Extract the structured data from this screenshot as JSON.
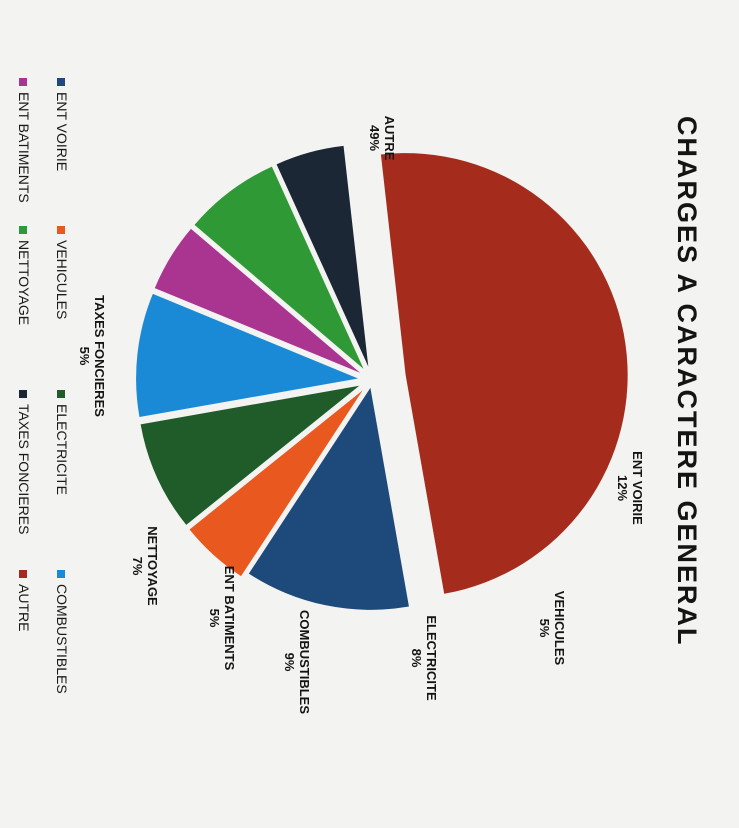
{
  "chart_data": {
    "type": "pie",
    "title": "CHARGES A CARACTERE GENERAL",
    "orientation": "rotated-90-clockwise",
    "exploded": true,
    "slices": [
      {
        "label": "ENT VOIRIE",
        "value": 12,
        "value_label": "12%",
        "color": "#1d4a7a"
      },
      {
        "label": "VEHICULES",
        "value": 5,
        "value_label": "5%",
        "color": "#e8581f"
      },
      {
        "label": "ELECTRICITE",
        "value": 8,
        "value_label": "8%",
        "color": "#1f5c2a"
      },
      {
        "label": "COMBUSTIBLES",
        "value": 9,
        "value_label": "9%",
        "color": "#1b8ad6"
      },
      {
        "label": "ENT BATIMENTS",
        "value": 5,
        "value_label": "5%",
        "color": "#a93591"
      },
      {
        "label": "NETTOYAGE",
        "value": 7,
        "value_label": "7%",
        "color": "#2f9a35"
      },
      {
        "label": "TAXES FONCIERES",
        "value": 5,
        "value_label": "5%",
        "color": "#1b2734"
      },
      {
        "label": "AUTRE",
        "value": 49,
        "value_label": "49%",
        "color": "#a52c1d"
      }
    ],
    "legend": {
      "placement": "bottom",
      "columns": [
        [
          "ENT VOIRIE",
          "VEHICULES",
          "ELECTRICITE",
          "COMBUSTIBLES"
        ],
        [
          "ENT BATIMENTS",
          "NETTOYAGE",
          "TAXES FONCIERES",
          "AUTRE"
        ]
      ]
    }
  }
}
